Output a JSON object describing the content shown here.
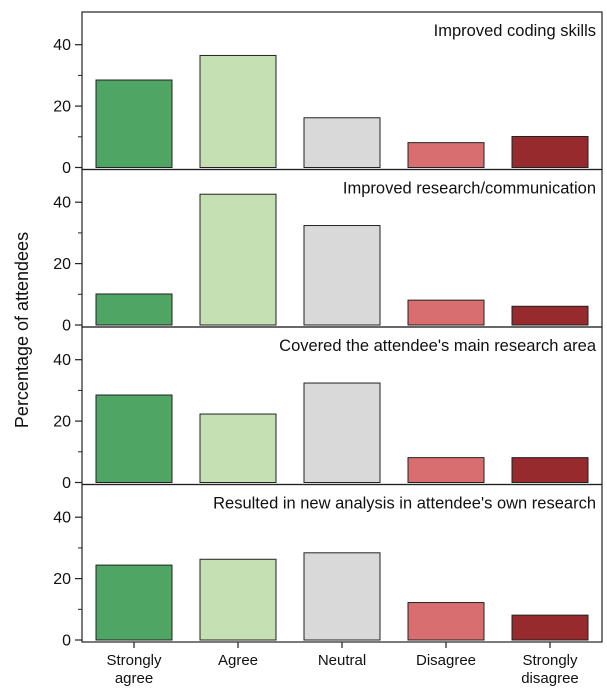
{
  "chart_data": {
    "type": "bar",
    "ylabel": "Percentage of attendees",
    "categories": [
      {
        "line1": "Strongly",
        "line2": "agree"
      },
      {
        "line1": "Agree",
        "line2": ""
      },
      {
        "line1": "Neutral",
        "line2": ""
      },
      {
        "line1": "Disagree",
        "line2": ""
      },
      {
        "line1": "Strongly",
        "line2": "disagree"
      }
    ],
    "category_colors": [
      "#4ea564",
      "#c5e1b4",
      "#d9d9d9",
      "#d96e70",
      "#962a2d"
    ],
    "ylim": [
      0,
      50
    ],
    "yticks": [
      0,
      20,
      40
    ],
    "panels": [
      {
        "title": "Improved coding skills",
        "values": [
          28.5,
          36.5,
          16.2,
          8.1,
          10.1
        ]
      },
      {
        "title": "Improved research/communication",
        "values": [
          10.1,
          42.6,
          32.4,
          8.1,
          6.1
        ]
      },
      {
        "title": "Covered the attendee's main research area",
        "values": [
          28.5,
          22.3,
          32.4,
          8.1,
          8.1
        ]
      },
      {
        "title": "Resulted in new analysis in attendee's own research",
        "values": [
          24.4,
          26.3,
          28.4,
          12.2,
          8.1
        ]
      }
    ]
  }
}
